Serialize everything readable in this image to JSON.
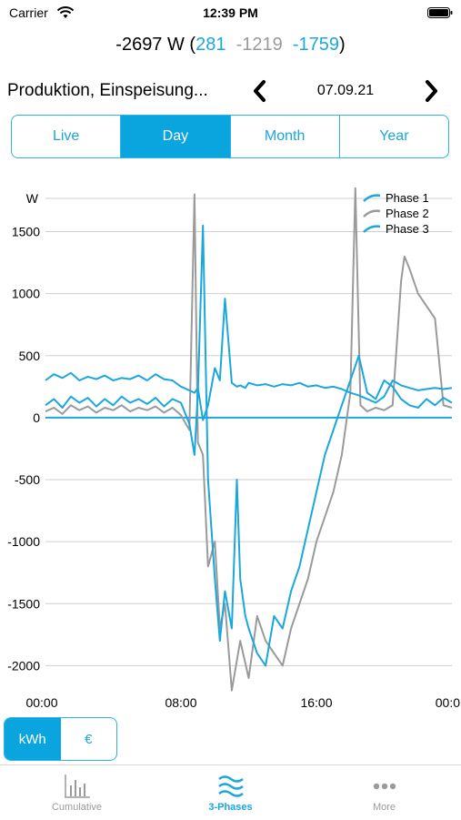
{
  "status_bar": {
    "carrier": "Carrier",
    "time": "12:39 PM",
    "icons": [
      "wifi-icon",
      "battery-icon"
    ]
  },
  "summary": {
    "total": "-2697 W (",
    "phase1": "281",
    "phase2": "-1219",
    "phase3": "-1759",
    "close": ")"
  },
  "nav": {
    "title": "Produktion, Einspeisung...",
    "date": "07.09.21",
    "prev_icon": "chevron-left-icon",
    "next_icon": "chevron-right-icon"
  },
  "segments": [
    {
      "label": "Live",
      "active": false
    },
    {
      "label": "Day",
      "active": true
    },
    {
      "label": "Month",
      "active": false
    },
    {
      "label": "Year",
      "active": false
    }
  ],
  "units": [
    {
      "label": "kWh",
      "active": true
    },
    {
      "label": "€",
      "active": false
    }
  ],
  "tabs": [
    {
      "label": "Cumulative",
      "icon": "bar-chart-icon",
      "active": false
    },
    {
      "label": "3-Phases",
      "icon": "waves-icon",
      "active": true
    },
    {
      "label": "More",
      "icon": "more-dots-icon",
      "active": false
    }
  ],
  "colors": {
    "accent": "#0aa5df",
    "phase1": "#1aa7dc",
    "phase2": "#9a9a9a",
    "phase3": "#1aa7dc"
  },
  "chart_data": {
    "type": "line",
    "ylabel": "W",
    "ylim": [
      -2100,
      1900
    ],
    "yticks": [
      -2000,
      -1500,
      -1000,
      -500,
      0,
      500,
      1000,
      1500
    ],
    "ytick_labels": [
      "-2000",
      "-1500",
      "-1000",
      "-500",
      "0",
      "500",
      "1000",
      "1500"
    ],
    "xlim": [
      0,
      24
    ],
    "xticks": [
      0,
      8,
      16,
      24
    ],
    "xtick_labels": [
      "00:00",
      "08:00",
      "16:00",
      "00:0"
    ],
    "grid": true,
    "legend": "top-right",
    "series": [
      {
        "name": "Phase 1",
        "color": "#1aa7dc",
        "x": [
          0,
          0.5,
          1,
          1.5,
          2,
          2.5,
          3,
          3.5,
          4,
          4.5,
          5,
          5.5,
          6,
          6.5,
          7,
          7.5,
          8,
          8.5,
          8.8,
          9,
          9.3,
          9.6,
          10,
          10.3,
          10.6,
          11,
          11.3,
          11.5,
          11.8,
          12,
          12.5,
          13,
          13.5,
          14,
          14.5,
          15,
          15.5,
          16,
          16.5,
          17,
          17.5,
          18,
          18.5,
          19,
          19.5,
          20,
          20.5,
          21,
          21.5,
          22,
          22.5,
          23,
          23.5,
          24
        ],
        "y": [
          300,
          350,
          320,
          360,
          300,
          330,
          310,
          340,
          300,
          320,
          310,
          340,
          300,
          350,
          310,
          300,
          250,
          220,
          200,
          240,
          -20,
          100,
          400,
          300,
          960,
          280,
          250,
          260,
          240,
          280,
          260,
          270,
          250,
          270,
          260,
          280,
          250,
          260,
          240,
          250,
          230,
          200,
          180,
          150,
          120,
          170,
          300,
          260,
          240,
          220,
          230,
          240,
          230,
          240
        ]
      },
      {
        "name": "Phase 2",
        "color": "#9a9a9a",
        "x": [
          0,
          0.5,
          1,
          1.5,
          2,
          2.5,
          3,
          3.5,
          4,
          4.5,
          5,
          5.5,
          6,
          6.5,
          7,
          7.5,
          8,
          8.5,
          8.8,
          9,
          9.3,
          9.6,
          10,
          10.3,
          10.6,
          11,
          11.5,
          12,
          12.5,
          13,
          13.5,
          14,
          14.5,
          15,
          15.5,
          16,
          16.5,
          17,
          17.5,
          18,
          18.3,
          18.6,
          19,
          19.5,
          20,
          20.5,
          21,
          21.2,
          21.5,
          22,
          22.5,
          23,
          23.5,
          24
        ],
        "y": [
          50,
          80,
          30,
          100,
          60,
          90,
          40,
          80,
          60,
          100,
          50,
          80,
          60,
          90,
          40,
          80,
          20,
          -100,
          1800,
          -200,
          -300,
          -1200,
          -1000,
          -1700,
          -1500,
          -2200,
          -1800,
          -2100,
          -1600,
          -1800,
          -1900,
          -2000,
          -1700,
          -1500,
          -1300,
          -1000,
          -800,
          -600,
          -300,
          200,
          1850,
          100,
          50,
          80,
          60,
          100,
          1100,
          1300,
          1200,
          1000,
          900,
          800,
          100,
          80
        ]
      },
      {
        "name": "Phase 3",
        "color": "#1aa7dc",
        "x": [
          0,
          0.5,
          1,
          1.5,
          2,
          2.5,
          3,
          3.5,
          4,
          4.5,
          5,
          5.5,
          6,
          6.5,
          7,
          7.5,
          8,
          8.5,
          8.8,
          9,
          9.3,
          9.6,
          10,
          10.3,
          10.6,
          11,
          11.3,
          11.5,
          11.8,
          12,
          12.5,
          13,
          13.5,
          14,
          14.5,
          15,
          15.5,
          16,
          16.5,
          17,
          17.5,
          18,
          18.5,
          19,
          19.5,
          20,
          20.5,
          21,
          21.5,
          22,
          22.5,
          23,
          23.5,
          24
        ],
        "y": [
          100,
          150,
          80,
          170,
          120,
          160,
          90,
          150,
          100,
          170,
          120,
          150,
          110,
          160,
          90,
          150,
          120,
          -50,
          -300,
          200,
          1550,
          -500,
          -1300,
          -1800,
          -1400,
          -1700,
          -500,
          -1300,
          -1600,
          -1700,
          -1900,
          -2000,
          -1600,
          -1700,
          -1400,
          -1200,
          -900,
          -600,
          -300,
          -100,
          100,
          300,
          500,
          200,
          150,
          300,
          250,
          150,
          100,
          80,
          150,
          100,
          160,
          120
        ]
      }
    ]
  }
}
